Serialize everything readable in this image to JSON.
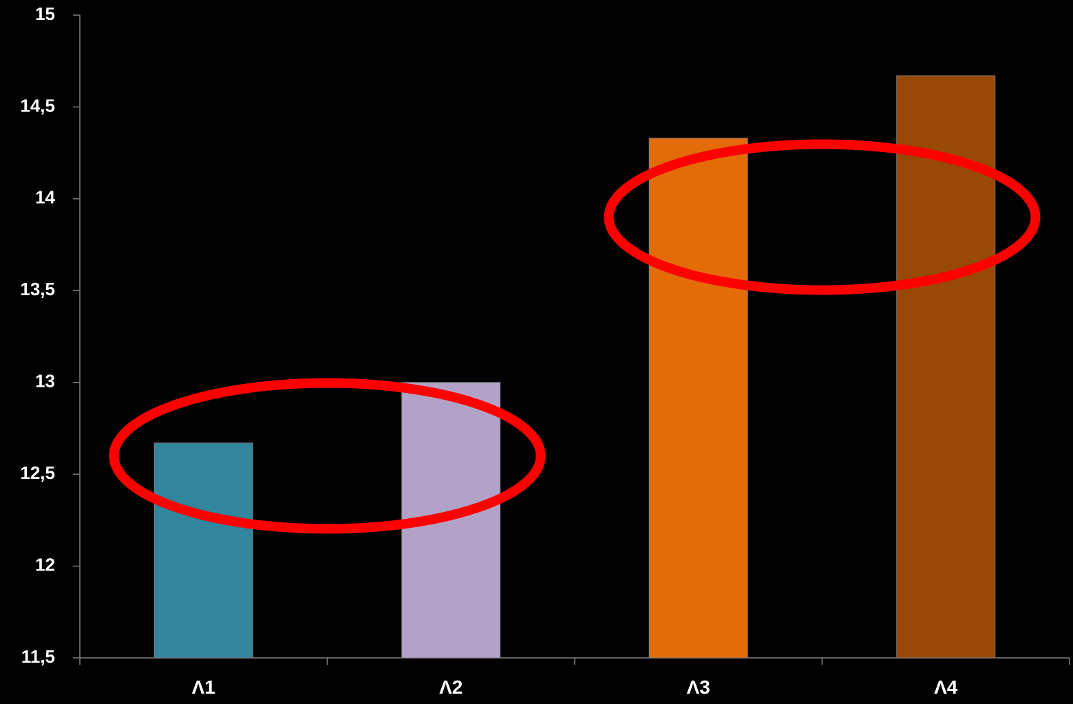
{
  "chart_data": {
    "type": "bar",
    "categories": [
      "Λ1",
      "Λ2",
      "Λ3",
      "Λ4"
    ],
    "values": [
      12.67,
      13.0,
      14.33,
      14.67
    ],
    "colors": [
      "#31859C",
      "#B3A2C7",
      "#E36C09",
      "#984807"
    ],
    "ylim": [
      11.5,
      15
    ],
    "yticks": [
      11.5,
      12,
      12.5,
      13,
      13.5,
      14,
      14.5,
      15
    ],
    "ytick_labels": [
      "11,5",
      "12",
      "12,5",
      "13",
      "13,5",
      "14",
      "14,5",
      "15"
    ],
    "title": "",
    "xlabel": "",
    "ylabel": "",
    "grid": false,
    "background": "#000000",
    "axis_color": "#808080",
    "annotations": [
      {
        "type": "ellipse",
        "color": "#FF0000",
        "encloses": [
          "Λ1",
          "Λ2"
        ],
        "center_value": 12.6
      },
      {
        "type": "ellipse",
        "color": "#FF0000",
        "encloses": [
          "Λ3",
          "Λ4"
        ],
        "center_value": 13.9
      }
    ]
  }
}
